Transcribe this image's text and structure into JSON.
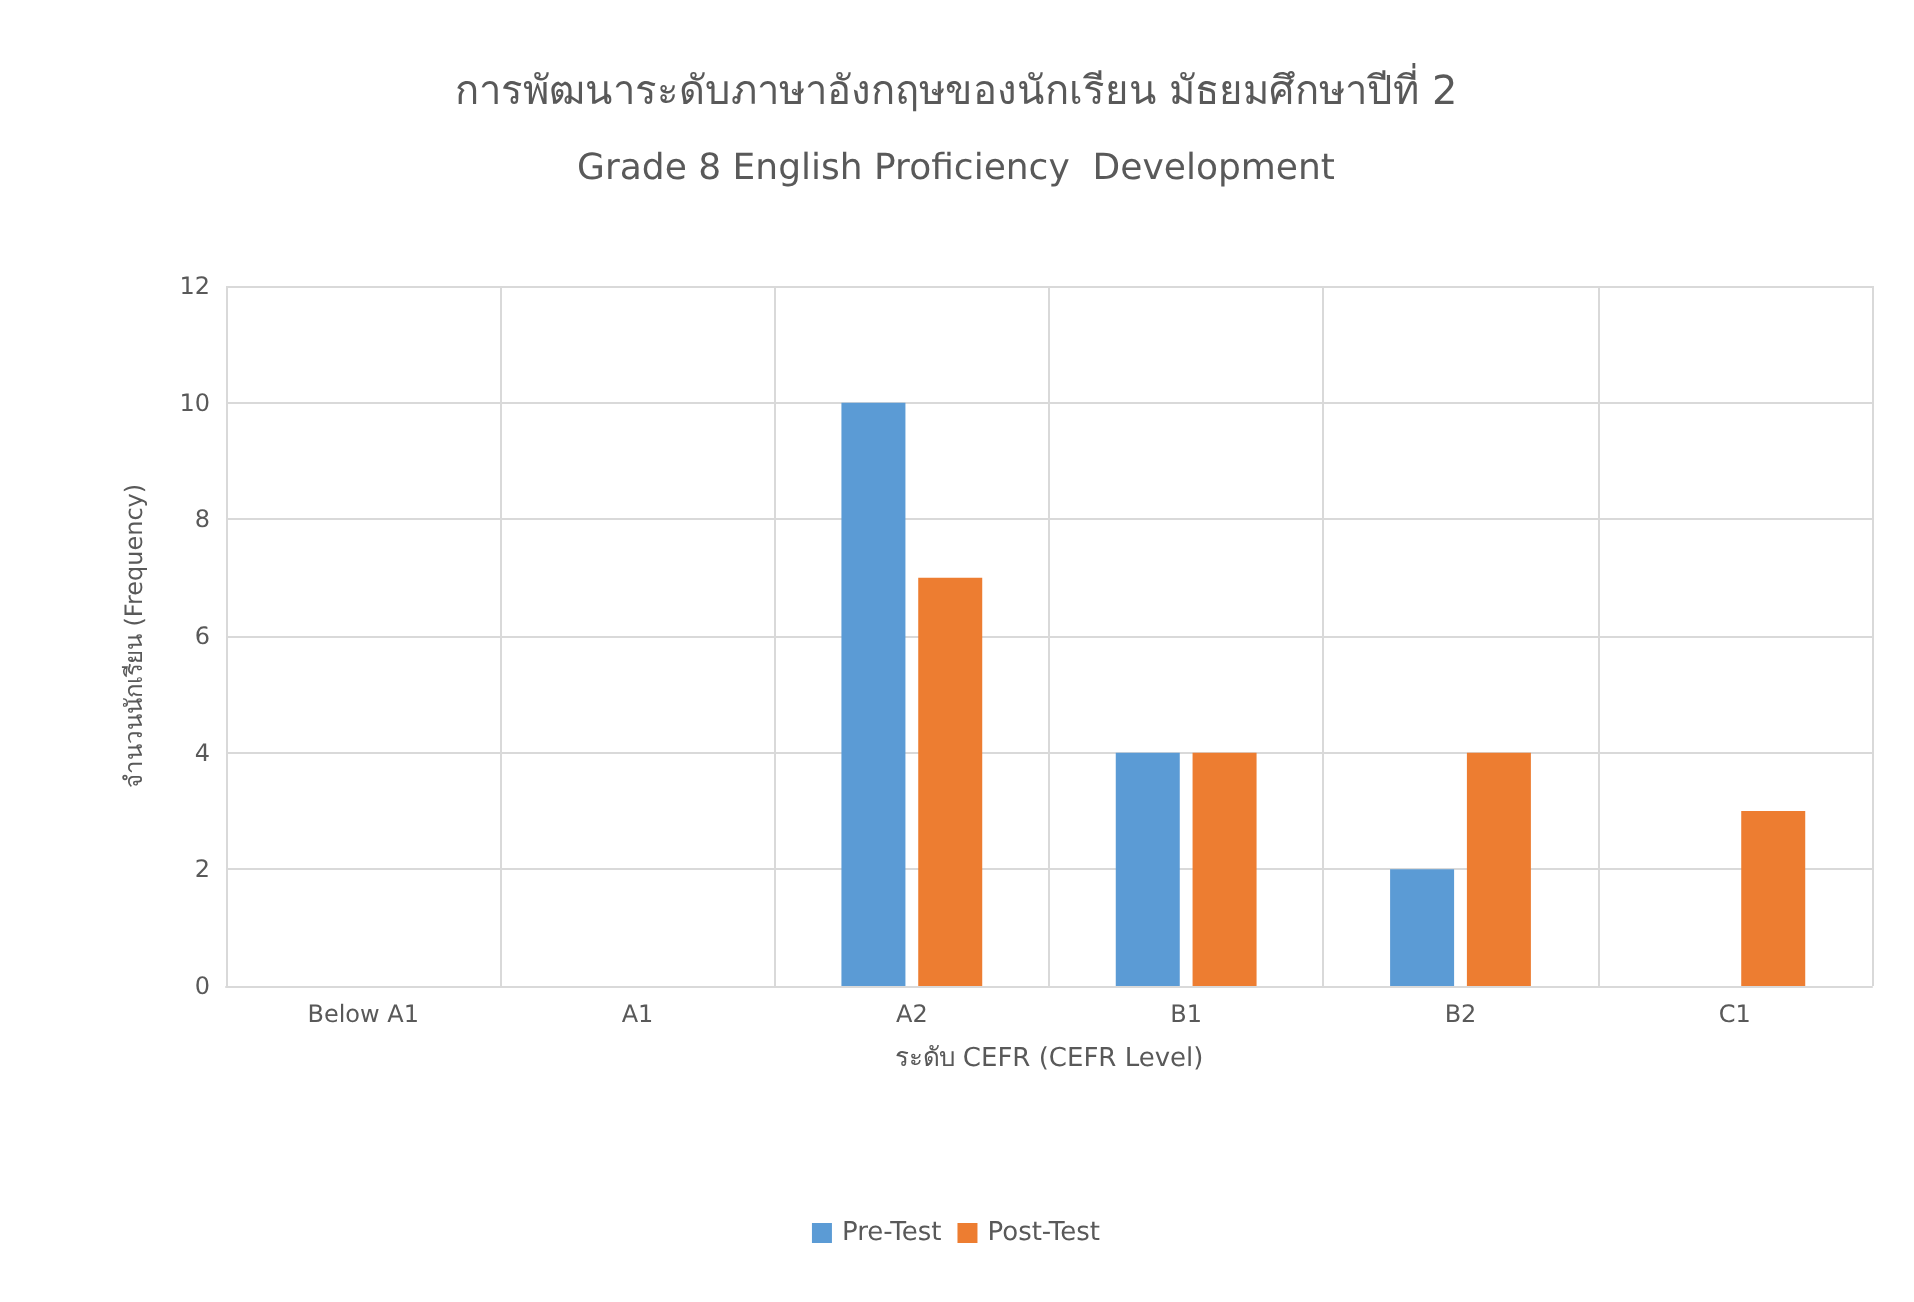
{
  "chart_data": {
    "type": "bar",
    "title": "การพัฒนาระดับภาษาอังกฤษของนักเรียน มัธยมศึกษาปีที่ 2",
    "subtitle": "Grade 8 English Proficiency  Development",
    "xlabel": "ระดับ CEFR (CEFR Level)",
    "ylabel": "จำนวนนักเรียน (Frequency)",
    "categories": [
      "Below A1",
      "A1",
      "A2",
      "B1",
      "B2",
      "C1"
    ],
    "series": [
      {
        "name": "Pre-Test",
        "color": "#5b9bd5",
        "values": [
          0,
          0,
          10,
          4,
          2,
          0
        ]
      },
      {
        "name": "Post-Test",
        "color": "#ed7d31",
        "values": [
          0,
          0,
          7,
          4,
          4,
          3
        ]
      }
    ],
    "ylim": [
      0,
      12
    ],
    "yticks": [
      0,
      2,
      4,
      6,
      8,
      10,
      12
    ],
    "grid": true,
    "legend": "bottom"
  }
}
